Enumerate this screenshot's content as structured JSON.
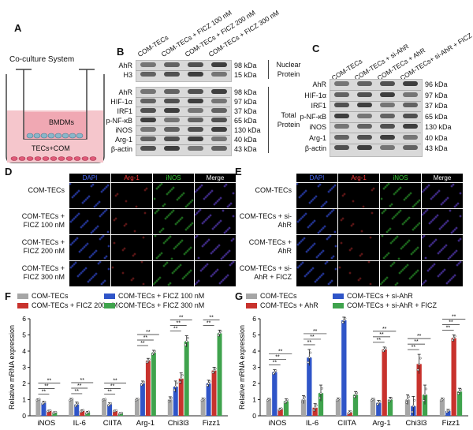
{
  "panels": {
    "a": {
      "label": "A",
      "system": "Co-culture System",
      "bmdm": "BMDMs",
      "tec": "TECs+COM"
    },
    "b": {
      "label": "B",
      "columns": [
        "COM-TECs",
        "COM-TECs + FICZ 100 nM",
        "COM-TECs + FICZ 200 nM",
        "COM-TECs + FICZ 300 nM"
      ],
      "nuclear_rows": [
        {
          "name": "AhR",
          "kda": "98 kDa"
        },
        {
          "name": "H3",
          "kda": "15 kDa"
        }
      ],
      "nuclear_group": "Nuclear Protein",
      "total_rows": [
        {
          "name": "AhR",
          "kda": "98 kDa"
        },
        {
          "name": "HIF-1α",
          "kda": "97 kDa"
        },
        {
          "name": "IRF1",
          "kda": "37 kDa"
        },
        {
          "name": "p-NF-κB",
          "kda": "65 kDa"
        },
        {
          "name": "iNOS",
          "kda": "130 kDa"
        },
        {
          "name": "Arg-1",
          "kda": "40 kDa"
        },
        {
          "name": "β-actin",
          "kda": "43 kDa"
        }
      ],
      "total_group": "Total Protein"
    },
    "c": {
      "label": "C",
      "columns": [
        "COM-TECs",
        "COM-TECs + si-AhR",
        "COM-TECs + AhR",
        "COM-TECs+ si-AhR + FICZ"
      ],
      "rows": [
        {
          "name": "AhR",
          "kda": "96 kDa"
        },
        {
          "name": "HIF-1α",
          "kda": "97 kDa"
        },
        {
          "name": "IRF1",
          "kda": "37 kDa"
        },
        {
          "name": "p-NF-κB",
          "kda": "65 kDa"
        },
        {
          "name": "iNOS",
          "kda": "130 kDa"
        },
        {
          "name": "Arg-1",
          "kda": "40 kDa"
        },
        {
          "name": "β-actin",
          "kda": "43 kDa"
        }
      ]
    },
    "d": {
      "label": "D",
      "headers": [
        "DAPI",
        "Arg-1",
        "iNOS",
        "Merge"
      ],
      "header_colors": [
        "#4a6cff",
        "#ff3b3b",
        "#3bd13b",
        "#ffffff"
      ],
      "rows": [
        "COM-TECs",
        "COM-TECs + FICZ 100 nM",
        "COM-TECs + FICZ 200 nM",
        "COM-TECs + FICZ 300 nM"
      ]
    },
    "e": {
      "label": "E",
      "headers": [
        "DAPI",
        "Arg-1",
        "iNOS",
        "Merge"
      ],
      "rows": [
        "COM-TECs",
        "COM-TECs + si-AhR",
        "COM-TECs + AhR",
        "COM-TECs + si-AhR + FICZ"
      ]
    },
    "f": {
      "label": "F",
      "ylabel": "Relative mRNA expression",
      "legend": [
        {
          "name": "COM-TECs",
          "color": "#a6a6a6"
        },
        {
          "name": "COM-TECs + FICZ 100 nM",
          "color": "#2f55c8"
        },
        {
          "name": "COM-TECs + FICZ 200 nM",
          "color": "#c8322d"
        },
        {
          "name": "COM-TECs + FICZ 300 nM",
          "color": "#3fa34d"
        }
      ]
    },
    "g": {
      "label": "G",
      "ylabel": "Relative mRNA expression",
      "legend": [
        {
          "name": "COM-TECs",
          "color": "#a6a6a6"
        },
        {
          "name": "COM-TECs + si-AhR",
          "color": "#2f55c8"
        },
        {
          "name": "COM-TECs + AhR",
          "color": "#c8322d"
        },
        {
          "name": "COM-TECs + si-AhR + FICZ",
          "color": "#3fa34d"
        }
      ]
    }
  },
  "chart_data": [
    {
      "type": "bar",
      "panel": "F",
      "categories": [
        "iNOS",
        "IL-6",
        "CIITA",
        "Arg-1",
        "Chi3l3",
        "Fizz1"
      ],
      "ylim": [
        0,
        6
      ],
      "yticks": [
        0,
        1,
        2,
        3,
        4,
        5,
        6
      ],
      "ylabel": "Relative mRNA expression",
      "series": [
        {
          "name": "COM-TECs",
          "color": "#a6a6a6",
          "values": [
            1.0,
            1.0,
            1.0,
            1.0,
            1.0,
            1.0
          ]
        },
        {
          "name": "COM-TECs + FICZ 100 nM",
          "color": "#2f55c8",
          "values": [
            0.8,
            0.7,
            0.7,
            2.0,
            1.8,
            2.0
          ]
        },
        {
          "name": "COM-TECs + FICZ 200 nM",
          "color": "#c8322d",
          "values": [
            0.3,
            0.3,
            0.3,
            3.4,
            2.3,
            2.8
          ]
        },
        {
          "name": "COM-TECs + FICZ 300 nM",
          "color": "#3fa34d",
          "values": [
            0.2,
            0.2,
            0.15,
            3.9,
            4.6,
            5.1
          ]
        }
      ],
      "errors": [
        0.1,
        0.15,
        0.1,
        0.15,
        0.35,
        0.2
      ],
      "significance": "**"
    },
    {
      "type": "bar",
      "panel": "G",
      "categories": [
        "iNOS",
        "IL-6",
        "CIITA",
        "Arg-1",
        "Chi3l3",
        "Fizz1"
      ],
      "ylim": [
        0,
        6
      ],
      "yticks": [
        0,
        1,
        2,
        3,
        4,
        5,
        6
      ],
      "ylabel": "Relative mRNA expression",
      "series": [
        {
          "name": "COM-TECs",
          "color": "#a6a6a6",
          "values": [
            1.0,
            1.0,
            1.0,
            1.0,
            1.0,
            1.0
          ]
        },
        {
          "name": "COM-TECs + si-AhR",
          "color": "#2f55c8",
          "values": [
            2.7,
            3.6,
            5.9,
            0.8,
            0.6,
            0.3
          ]
        },
        {
          "name": "COM-TECs + AhR",
          "color": "#c8322d",
          "values": [
            0.4,
            0.5,
            0.2,
            4.1,
            3.2,
            4.8
          ]
        },
        {
          "name": "COM-TECs + si-AhR + FICZ",
          "color": "#3fa34d",
          "values": [
            0.9,
            1.4,
            1.3,
            1.0,
            1.3,
            1.5
          ]
        }
      ],
      "errors": [
        0.15,
        0.5,
        0.2,
        0.15,
        0.6,
        0.2
      ],
      "significance": "**"
    }
  ]
}
